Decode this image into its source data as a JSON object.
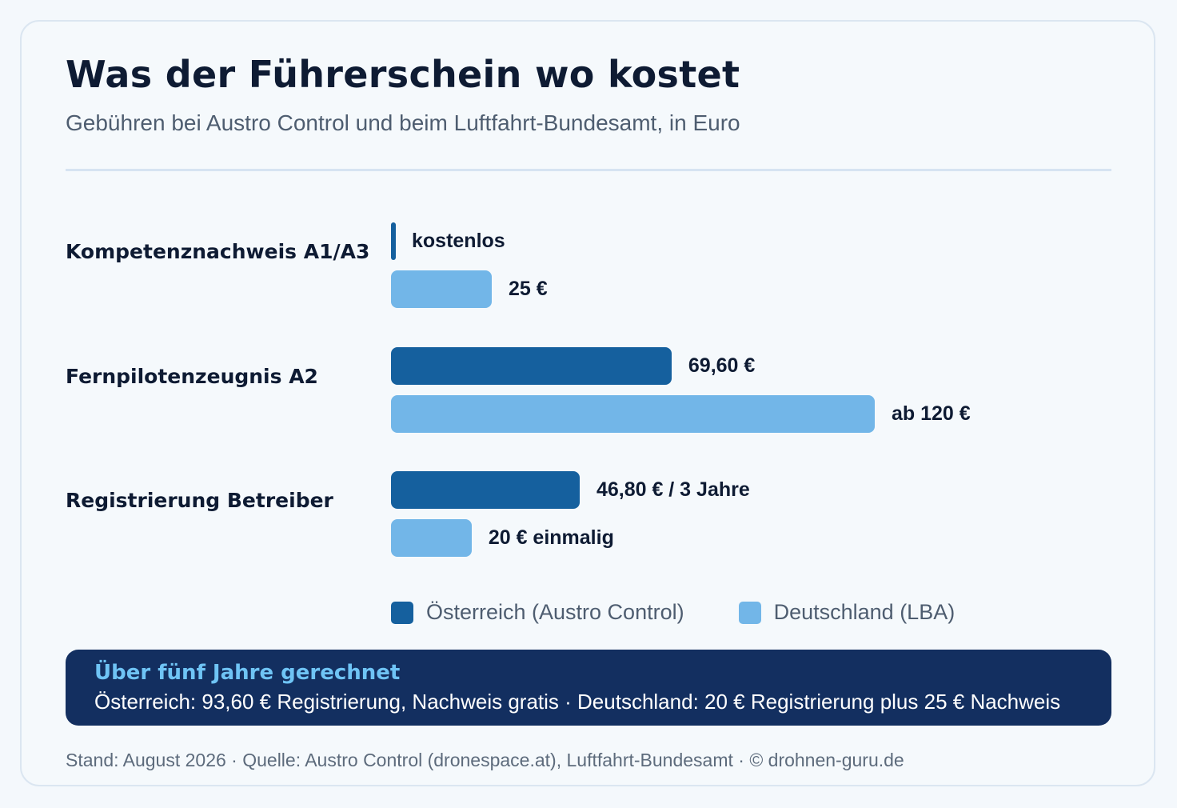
{
  "header": {
    "title": "Was der Führerschein wo kostet",
    "subtitle": "Gebühren bei Austro Control und beim Luftfahrt-Bundesamt, in Euro"
  },
  "chart_data": {
    "type": "bar",
    "orientation": "horizontal",
    "title": "Was der Führerschein wo kostet",
    "subtitle": "Gebühren bei Austro Control und beim Luftfahrt-Bundesamt, in Euro",
    "categories": [
      "Kompetenznachweis A1/A3",
      "Fernpilotenzeugnis A2",
      "Registrierung Betreiber"
    ],
    "series": [
      {
        "name": "Österreich (Austro Control)",
        "color": "#15609e",
        "values": [
          0,
          69.6,
          46.8
        ],
        "labels": [
          "kostenlos",
          "69,60 €",
          "46,80 € / 3 Jahre"
        ]
      },
      {
        "name": "Deutschland (LBA)",
        "color": "#72b6e8",
        "values": [
          25,
          120,
          20
        ],
        "labels": [
          "25 €",
          "ab 120 €",
          "20 € einmalig"
        ]
      }
    ],
    "xlim": [
      0,
      120
    ],
    "grid": false,
    "legend_position": "bottom"
  },
  "callout": {
    "title": "Über fünf Jahre gerechnet",
    "text": "Österreich: 93,60 € Registrierung, Nachweis gratis · Deutschland: 20 € Registrierung plus 25 € Nachweis"
  },
  "footer": {
    "text": "Stand: August 2026 · Quelle: Austro Control (dronespace.at), Luftfahrt-Bundesamt · © drohnen-guru.de"
  }
}
